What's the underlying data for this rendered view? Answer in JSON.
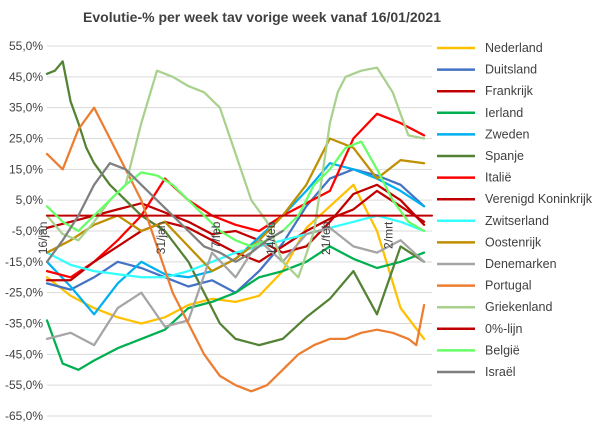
{
  "chart_data": {
    "type": "line",
    "title": "Evolutie-% per week tav vorige week vanaf 16/01/2021",
    "xlabel": "",
    "ylabel": "",
    "ylim": [
      -65,
      55
    ],
    "yticks": [
      -65,
      -55,
      -45,
      -35,
      -25,
      -15,
      -5,
      5,
      15,
      25,
      35,
      45,
      55
    ],
    "ytick_labels": [
      "-65,0%",
      "-55,0%",
      "-45,0%",
      "-35,0%",
      "-25,0%",
      "-15,0%",
      "-5,0%",
      "5,0%",
      "15,0%",
      "25,0%",
      "35,0%",
      "45,0%",
      "55,0%"
    ],
    "x_ticks": [
      {
        "day": 0,
        "label": "16/jan"
      },
      {
        "day": 15,
        "label": "31/jan"
      },
      {
        "day": 22,
        "label": "7/feb"
      },
      {
        "day": 29,
        "label": "14/feb"
      },
      {
        "day": 36,
        "label": "21/feb"
      },
      {
        "day": 44,
        "label": "2/mrt"
      }
    ],
    "xlim": [
      0,
      49
    ],
    "grid": true,
    "legend_position": "right",
    "series": [
      {
        "name": "Nederland",
        "color": "#FFC000",
        "x": [
          0,
          3,
          6,
          9,
          12,
          15,
          18,
          21,
          24,
          27,
          30,
          33,
          36,
          39,
          42,
          45,
          48
        ],
        "y": [
          -20,
          -26,
          -30,
          -33,
          -35,
          -33,
          -29,
          -27,
          -28,
          -26,
          -18,
          -4,
          3,
          10,
          -5,
          -30,
          -40
        ]
      },
      {
        "name": "Duitsland",
        "color": "#4472C4",
        "x": [
          0,
          3,
          6,
          9,
          12,
          15,
          18,
          21,
          24,
          27,
          30,
          33,
          36,
          39,
          42,
          45,
          48
        ],
        "y": [
          -22,
          -24,
          -20,
          -15,
          -17,
          -20,
          -23,
          -21,
          -25,
          -18,
          -9,
          3,
          12,
          15,
          13,
          10,
          3
        ]
      },
      {
        "name": "Frankrijk",
        "color": "#C00000",
        "x": [
          0,
          3,
          6,
          9,
          12,
          15,
          18,
          21,
          24,
          27,
          30,
          33,
          36,
          39,
          42,
          45,
          48
        ],
        "y": [
          -4,
          -2,
          0,
          2,
          4,
          1,
          -2,
          -6,
          -5,
          -8,
          -12,
          -10,
          -2,
          7,
          10,
          5,
          -3
        ]
      },
      {
        "name": "Ierland",
        "color": "#00B050",
        "x": [
          0,
          2,
          4,
          6,
          9,
          12,
          15,
          18,
          21,
          24,
          27,
          30,
          33,
          36,
          39,
          42,
          45,
          48
        ],
        "y": [
          -34,
          -48,
          -50,
          -47,
          -43,
          -40,
          -37,
          -30,
          -28,
          -25,
          -20,
          -18,
          -15,
          -10,
          -14,
          -17,
          -15,
          -12
        ]
      },
      {
        "name": "Zweden",
        "color": "#00B0F0",
        "x": [
          0,
          3,
          6,
          9,
          12,
          15,
          18,
          21,
          24,
          27,
          30,
          33,
          36,
          39,
          42,
          45,
          48
        ],
        "y": [
          -15,
          -23,
          -32,
          -22,
          -15,
          -19,
          -20,
          -18,
          -14,
          -7,
          0,
          8,
          17,
          15,
          12,
          8,
          3
        ]
      },
      {
        "name": "Spanje",
        "color": "#548235",
        "x": [
          0,
          1,
          2,
          3,
          4,
          5,
          6,
          8,
          10,
          12,
          15,
          18,
          20,
          22,
          24,
          27,
          30,
          33,
          36,
          39,
          42,
          45,
          48
        ],
        "y": [
          46,
          47,
          50,
          37,
          30,
          22,
          17,
          10,
          5,
          0,
          -5,
          -15,
          -25,
          -35,
          -40,
          -42,
          -40,
          -33,
          -27,
          -18,
          -32,
          -10,
          -15
        ]
      },
      {
        "name": "Italië",
        "color": "#FF0000",
        "x": [
          0,
          3,
          6,
          9,
          12,
          15,
          18,
          21,
          24,
          27,
          30,
          33,
          36,
          39,
          42,
          45,
          48
        ],
        "y": [
          -18,
          -20,
          -15,
          -8,
          0,
          12,
          5,
          0,
          -3,
          -5,
          0,
          4,
          8,
          25,
          33,
          30,
          26
        ]
      },
      {
        "name": "Verenigd Koninkrijk",
        "color": "#C00000",
        "x": [
          0,
          3,
          6,
          9,
          12,
          15,
          18,
          21,
          24,
          27,
          30,
          33,
          36,
          39,
          42,
          45,
          48
        ],
        "y": [
          -21,
          -21,
          -15,
          -10,
          -5,
          -2,
          -4,
          -8,
          -12,
          -15,
          -10,
          -5,
          -1,
          2,
          8,
          3,
          -2
        ]
      },
      {
        "name": "Zwitserland",
        "color": "#33FFFF",
        "x": [
          0,
          3,
          6,
          9,
          12,
          15,
          18,
          21,
          24,
          27,
          30,
          33,
          36,
          39,
          42,
          45,
          48
        ],
        "y": [
          -12,
          -16,
          -18,
          -19,
          -20,
          -20,
          -18,
          -15,
          -12,
          -10,
          -8,
          -6,
          -4,
          -2,
          0,
          -2,
          -5
        ]
      },
      {
        "name": "Oostenrijk",
        "color": "#BF8F00",
        "x": [
          0,
          3,
          6,
          9,
          12,
          15,
          18,
          21,
          24,
          27,
          30,
          33,
          36,
          39,
          42,
          45,
          48
        ],
        "y": [
          -12,
          -8,
          -3,
          0,
          -5,
          -2,
          -10,
          -18,
          -14,
          -8,
          0,
          10,
          25,
          22,
          12,
          18,
          17
        ]
      },
      {
        "name": "Denemarken",
        "color": "#A5A5A5",
        "x": [
          0,
          3,
          6,
          9,
          12,
          15,
          18,
          21,
          24,
          27,
          30,
          33,
          36,
          39,
          42,
          45,
          48
        ],
        "y": [
          -40,
          -38,
          -42,
          -30,
          -25,
          -36,
          -34,
          -12,
          -20,
          -8,
          -15,
          -6,
          -4,
          -10,
          -12,
          -8,
          -15
        ]
      },
      {
        "name": "Portugal",
        "color": "#ED7D31",
        "x": [
          0,
          2,
          4,
          6,
          8,
          10,
          12,
          14,
          16,
          18,
          20,
          22,
          24,
          26,
          28,
          30,
          32,
          34,
          36,
          38,
          40,
          42,
          44,
          46,
          47,
          48
        ],
        "y": [
          20,
          15,
          28,
          35,
          25,
          15,
          5,
          -10,
          -25,
          -35,
          -45,
          -52,
          -55,
          -57,
          -55,
          -50,
          -45,
          -42,
          -40,
          -40,
          -38,
          -37,
          -38,
          -40,
          -42,
          -29
        ]
      },
      {
        "name": "Griekenland",
        "color": "#A9D18E",
        "x": [
          0,
          2,
          4,
          6,
          8,
          10,
          12,
          14,
          16,
          18,
          20,
          22,
          24,
          26,
          28,
          30,
          32,
          34,
          36,
          37,
          38,
          40,
          42,
          44,
          46,
          48
        ],
        "y": [
          0,
          -6,
          -8,
          -2,
          5,
          10,
          30,
          47,
          45,
          42,
          40,
          35,
          20,
          5,
          -2,
          -15,
          -20,
          -5,
          30,
          40,
          45,
          47,
          48,
          40,
          26,
          25
        ]
      },
      {
        "name": "0%-lijn",
        "color": "#C00000",
        "x": [
          0,
          49
        ],
        "y": [
          0,
          0
        ]
      },
      {
        "name": "België",
        "color": "#66FF66",
        "x": [
          0,
          2,
          4,
          6,
          8,
          10,
          12,
          14,
          16,
          18,
          20,
          22,
          24,
          26,
          28,
          30,
          32,
          34,
          36,
          38,
          40,
          42,
          44,
          46,
          48
        ],
        "y": [
          3,
          -2,
          -5,
          0,
          5,
          10,
          14,
          13,
          10,
          5,
          0,
          -5,
          -8,
          -10,
          -8,
          -5,
          0,
          10,
          15,
          22,
          24,
          15,
          5,
          -2,
          -5
        ]
      },
      {
        "name": "Israël",
        "color": "#7F7F7F",
        "x": [
          0,
          2,
          4,
          6,
          8,
          10,
          12,
          14,
          16,
          18,
          20,
          22,
          24,
          26,
          28,
          30
        ],
        "y": [
          -15,
          -8,
          0,
          10,
          17,
          15,
          10,
          5,
          0,
          -5,
          -10,
          -12,
          -15,
          -12,
          -8,
          -5
        ]
      }
    ]
  }
}
